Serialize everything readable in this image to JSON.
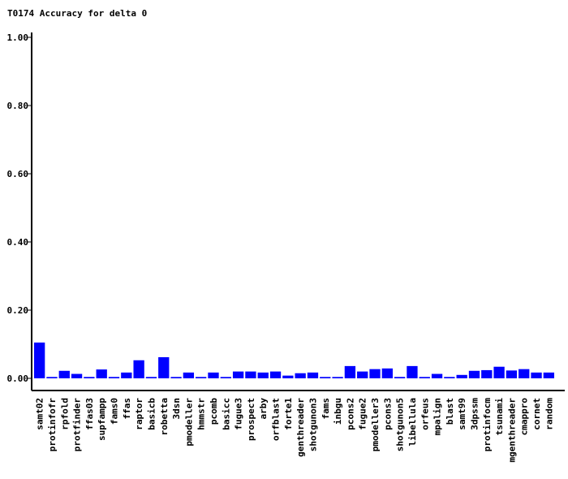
{
  "chart_data": {
    "type": "bar",
    "title": "T0174 Accuracy for delta 0",
    "xlabel": "",
    "ylabel": "",
    "ylim": [
      0,
      1
    ],
    "y_ticks": [
      "0.00",
      "0.20",
      "0.40",
      "0.60",
      "0.80",
      "1.00"
    ],
    "y_tick_values": [
      0,
      0.2,
      0.4,
      0.6,
      0.8,
      1.0
    ],
    "bar_color": "#0000ff",
    "grid": false,
    "categories": [
      "samt02",
      "protinfofr",
      "rpfold",
      "protfinder",
      "ffas03",
      "supfampp",
      "fams0",
      "ffas",
      "raptor",
      "basicb",
      "robetta",
      "3dsn",
      "pmodeller",
      "hmmstr",
      "pcomb",
      "basicc",
      "fugue3",
      "prospect",
      "arby",
      "orfblast",
      "forte1",
      "genthreader",
      "shotgunon3",
      "fams",
      "inbgu",
      "pcons2",
      "fugue2",
      "pmodeller3",
      "pcons3",
      "shotgunon5",
      "libellula",
      "orfeus",
      "mpalign",
      "blast",
      "samt99",
      "3dpssm",
      "protinfocm",
      "tsunami",
      "mgenthreader",
      "cmappro",
      "cornet",
      "random"
    ],
    "values": [
      0.105,
      0.004,
      0.022,
      0.013,
      0.004,
      0.026,
      0.004,
      0.017,
      0.053,
      0.004,
      0.062,
      0.004,
      0.017,
      0.004,
      0.017,
      0.004,
      0.02,
      0.02,
      0.017,
      0.02,
      0.008,
      0.015,
      0.017,
      0.004,
      0.004,
      0.036,
      0.02,
      0.027,
      0.029,
      0.004,
      0.036,
      0.004,
      0.013,
      0.004,
      0.01,
      0.022,
      0.024,
      0.034,
      0.023,
      0.027,
      0.017,
      0.017
    ]
  }
}
